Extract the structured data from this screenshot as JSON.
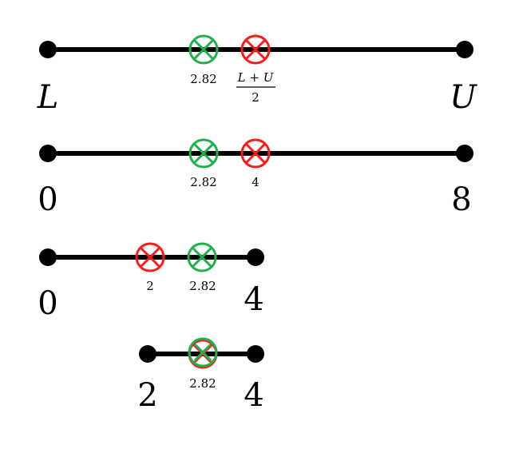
{
  "colors": {
    "line": "#000000",
    "green_marker": "#1fb04b",
    "red_marker": "#ff1a1a"
  },
  "row1": {
    "left_label": "L",
    "right_label": "U",
    "green_value": "2.82",
    "red_numerator": "L + U",
    "red_denominator": "2"
  },
  "row2": {
    "left_label": "0",
    "right_label": "8",
    "green_value": "2.82",
    "red_value": "4"
  },
  "row3": {
    "left_label": "0",
    "right_label": "4",
    "red_value": "2",
    "green_value": "2.82"
  },
  "row4": {
    "left_label": "2",
    "right_label": "4",
    "green_value": "2.82"
  }
}
